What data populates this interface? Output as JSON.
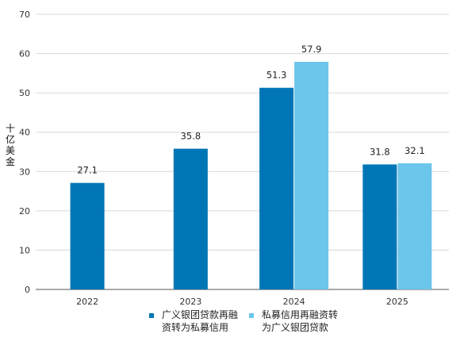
{
  "chart_data": {
    "type": "bar",
    "categories": [
      "2022",
      "2023",
      "2024",
      "2025"
    ],
    "series": [
      {
        "name": "广义银团贷款再融\n资转为私募信用",
        "color": "#0076b6",
        "values": [
          27.1,
          35.8,
          51.3,
          31.8
        ]
      },
      {
        "name": "私募信用再融资转\n为广义银团贷款",
        "color": "#6cc5ea",
        "values": [
          null,
          null,
          57.9,
          32.1
        ]
      }
    ],
    "ylabel": "十亿美金",
    "ylim": [
      0,
      70
    ],
    "yticks": [
      0,
      10,
      20,
      30,
      40,
      50,
      60,
      70
    ],
    "grid": true,
    "legend_position": "bottom"
  }
}
